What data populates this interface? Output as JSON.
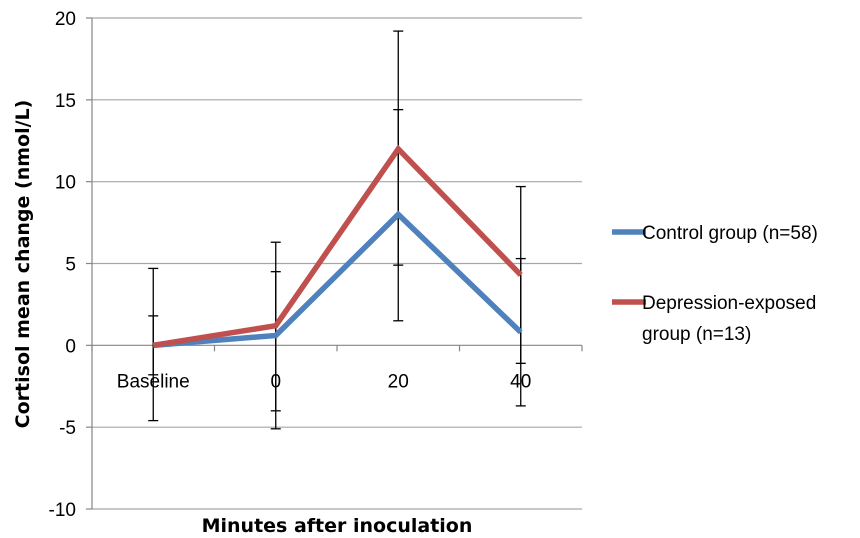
{
  "chart_data": {
    "type": "line",
    "title": "",
    "xlabel": "Minutes after inoculation",
    "ylabel": "Cortisol mean change (nmol/L)",
    "categories": [
      "Baseline",
      "0",
      "20",
      "40"
    ],
    "ylim": [
      -10,
      20
    ],
    "yticks": [
      -10,
      -5,
      0,
      5,
      10,
      15,
      20
    ],
    "grid": true,
    "legend_position": "right",
    "series": [
      {
        "name": "Control group (n=58)",
        "color": "#4f81bd",
        "values": [
          0,
          0.6,
          8.0,
          0.8
        ],
        "error_low": [
          -4.6,
          -5.1,
          1.5,
          -3.7
        ],
        "error_high": [
          4.7,
          6.3,
          14.4,
          5.3
        ]
      },
      {
        "name": "Depression-exposed group (n=13)",
        "legend_lines": [
          "Depression-exposed",
          "group (n=13)"
        ],
        "color": "#c0504d",
        "values": [
          0,
          1.2,
          12.0,
          4.3
        ],
        "error_low": [
          -1.8,
          -4.0,
          4.9,
          -1.1
        ],
        "error_high": [
          1.8,
          4.5,
          19.2,
          9.7
        ]
      }
    ]
  }
}
